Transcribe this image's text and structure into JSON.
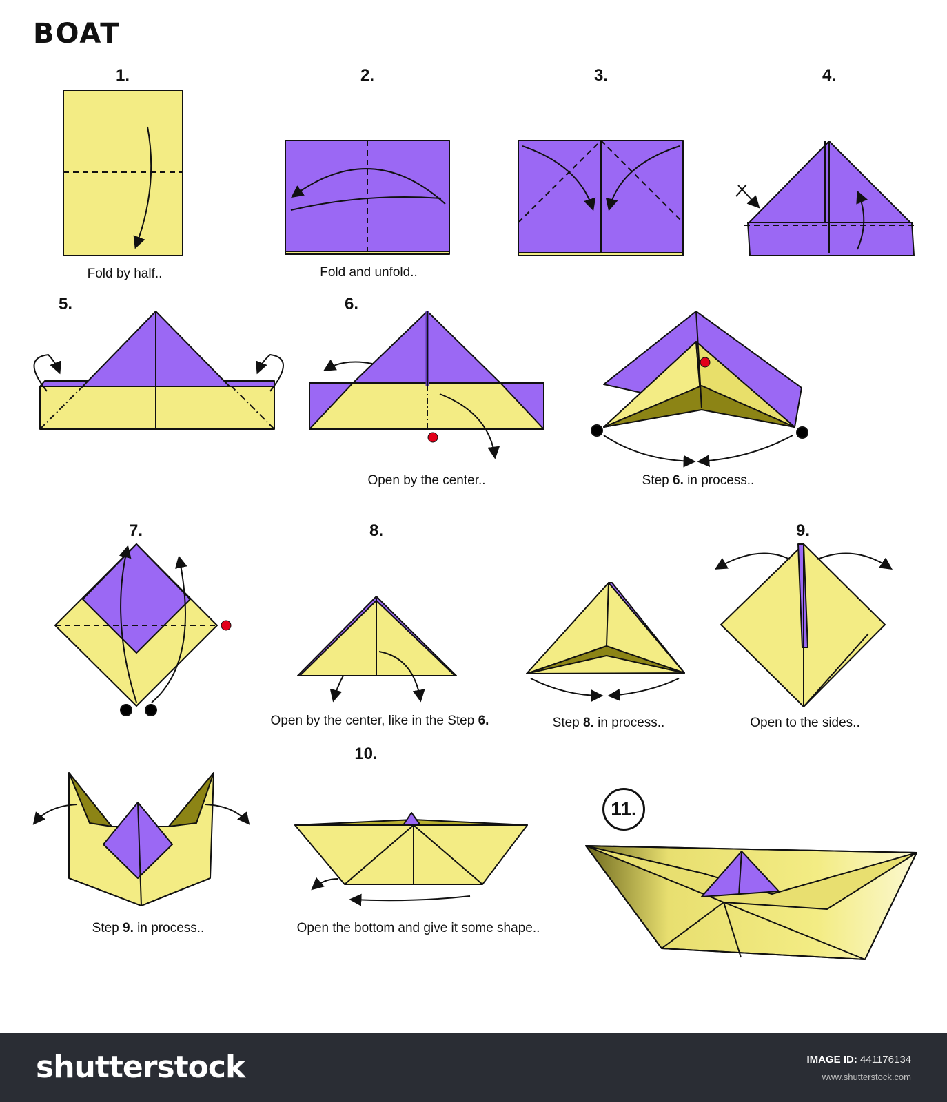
{
  "title": "BOAT",
  "colors": {
    "yellow": "#f3ec84",
    "purple": "#9b68f4",
    "dot_red": "#e2001a",
    "dot_black": "#000000",
    "footer": "#2a2d34"
  },
  "steps": [
    {
      "number": "1.",
      "caption": "Fold by half.."
    },
    {
      "number": "2.",
      "caption": "Fold and unfold.."
    },
    {
      "number": "3.",
      "caption": ""
    },
    {
      "number": "4.",
      "caption": ""
    },
    {
      "number": "5.",
      "caption": ""
    },
    {
      "number": "6.",
      "caption": "Open by the center.."
    },
    {
      "number": "",
      "caption_pre": "Step ",
      "caption_bold": "6.",
      "caption_post": " in process.."
    },
    {
      "number": "7.",
      "caption": ""
    },
    {
      "number": "8.",
      "caption_pre": "Open by the center, like in the Step ",
      "caption_bold": "6.",
      "caption_post": ""
    },
    {
      "number": "",
      "caption_pre": "Step ",
      "caption_bold": "8.",
      "caption_post": " in process.."
    },
    {
      "number": "9.",
      "caption": "Open to the sides.."
    },
    {
      "number": "",
      "caption_pre": "Step ",
      "caption_bold": "9.",
      "caption_post": " in process.."
    },
    {
      "number": "10.",
      "caption": "Open the bottom and give it some shape.."
    },
    {
      "number": "11.",
      "caption": ""
    }
  ],
  "footer": {
    "brand": "shutterstock",
    "image_id_label": "IMAGE ID:",
    "image_id": "441176134",
    "site": "www.shutterstock.com"
  }
}
